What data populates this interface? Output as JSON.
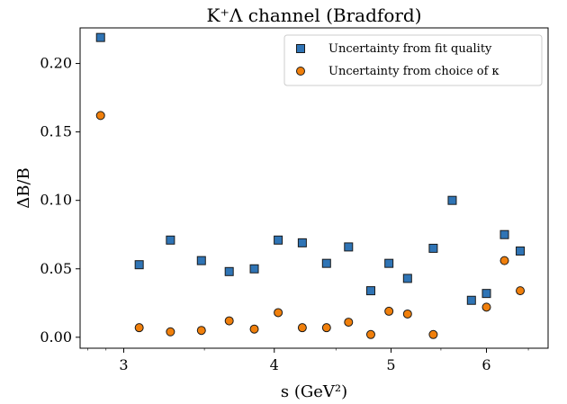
{
  "chart_data": {
    "type": "scatter",
    "title": "K⁺Λ channel (Bradford)",
    "xlabel": "s (GeV²)",
    "ylabel": "ΔB/B",
    "xscale": "log",
    "xlim": [
      2.76,
      6.75
    ],
    "ylim": [
      -0.008,
      0.226
    ],
    "xticks": [
      3,
      4,
      5,
      6
    ],
    "yticks": [
      0.0,
      0.05,
      0.1,
      0.15,
      0.2
    ],
    "ytick_labels": [
      "0.00",
      "0.05",
      "0.10",
      "0.15",
      "0.20"
    ],
    "grid": false,
    "legend_position": "top-right",
    "series": [
      {
        "name": "Uncertainty from fit quality",
        "marker": "square",
        "color": "#2f74b5",
        "x": [
          2.87,
          3.09,
          3.28,
          3.48,
          3.67,
          3.85,
          4.03,
          4.22,
          4.42,
          4.61,
          4.81,
          4.98,
          5.16,
          5.42,
          5.62,
          5.83,
          6.0,
          6.21,
          6.4
        ],
        "y": [
          0.219,
          0.053,
          0.071,
          0.056,
          0.048,
          0.05,
          0.071,
          0.069,
          0.054,
          0.066,
          0.034,
          0.054,
          0.043,
          0.065,
          0.1,
          0.027,
          0.032,
          0.075,
          0.063
        ]
      },
      {
        "name": "Uncertainty from choice of κ",
        "marker": "circle",
        "color": "#f07f0b",
        "x": [
          2.87,
          3.09,
          3.28,
          3.48,
          3.67,
          3.85,
          4.03,
          4.22,
          4.42,
          4.61,
          4.81,
          4.98,
          5.16,
          5.42,
          6.0,
          6.21,
          6.4
        ],
        "y": [
          0.162,
          0.007,
          0.004,
          0.005,
          0.012,
          0.006,
          0.018,
          0.007,
          0.007,
          0.011,
          0.002,
          0.019,
          0.017,
          0.002,
          0.022,
          0.056,
          0.034
        ]
      }
    ]
  }
}
